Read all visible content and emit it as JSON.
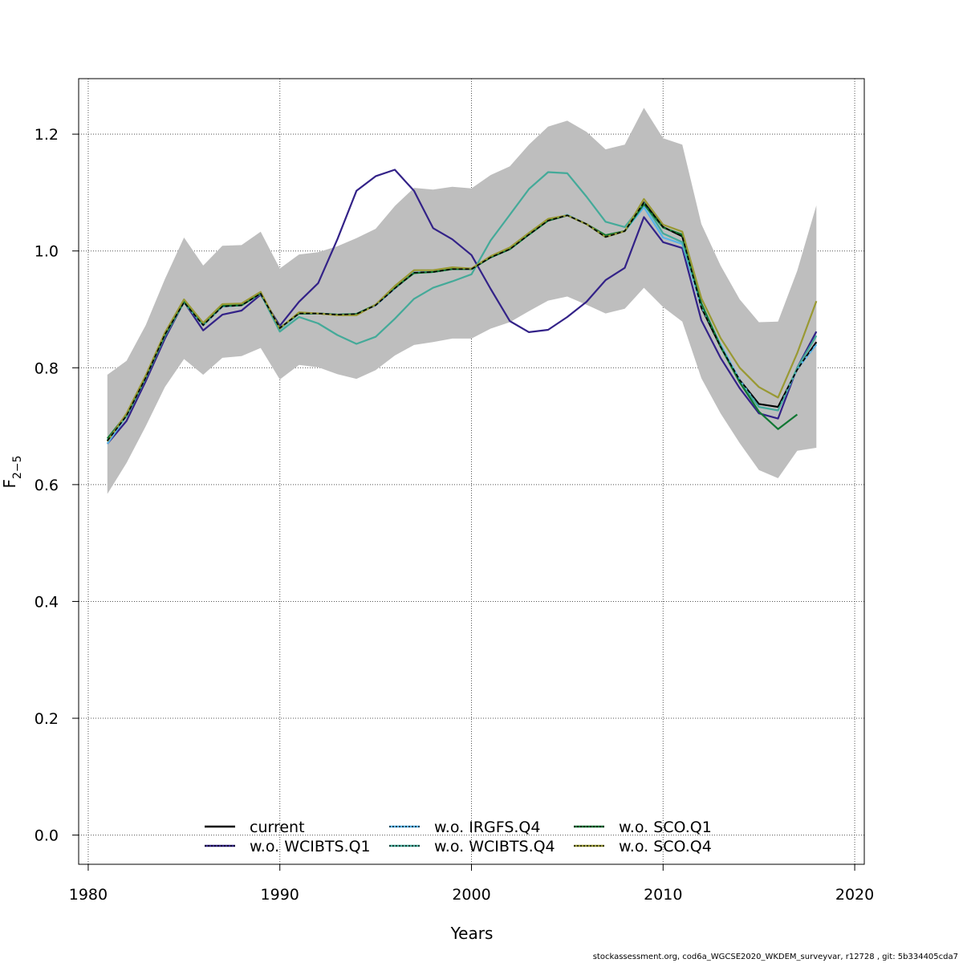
{
  "chart_data": {
    "type": "line",
    "xlabel": "Years",
    "ylabel_main": "F",
    "ylabel_sub": "2−5",
    "xlim": [
      1979.5,
      2020.5
    ],
    "ylim": [
      -0.05,
      1.295
    ],
    "xticks": [
      1980,
      1990,
      2000,
      2010,
      2020
    ],
    "yticks": [
      0.0,
      0.2,
      0.4,
      0.6,
      0.8,
      1.0,
      1.2
    ],
    "grid": true,
    "legend_position": "bottom-center",
    "x": [
      1981,
      1982,
      1983,
      1984,
      1985,
      1986,
      1987,
      1988,
      1989,
      1990,
      1991,
      1992,
      1993,
      1994,
      1995,
      1996,
      1997,
      1998,
      1999,
      2000,
      2001,
      2002,
      2003,
      2004,
      2005,
      2006,
      2007,
      2008,
      2009,
      2010,
      2011,
      2012,
      2013,
      2014,
      2015,
      2016,
      2017,
      2018
    ],
    "band": {
      "color": "#bebebe",
      "upper": [
        0.788,
        0.812,
        0.873,
        0.952,
        1.023,
        0.975,
        1.009,
        1.01,
        1.033,
        0.97,
        0.994,
        0.998,
        1.008,
        1.022,
        1.038,
        1.077,
        1.108,
        1.105,
        1.11,
        1.107,
        1.13,
        1.145,
        1.182,
        1.213,
        1.223,
        1.204,
        1.174,
        1.182,
        1.245,
        1.193,
        1.182,
        1.046,
        0.975,
        0.917,
        0.878,
        0.879,
        0.966,
        1.078
      ],
      "lower": [
        0.584,
        0.637,
        0.7,
        0.767,
        0.815,
        0.788,
        0.817,
        0.82,
        0.834,
        0.78,
        0.805,
        0.801,
        0.789,
        0.781,
        0.796,
        0.821,
        0.839,
        0.844,
        0.85,
        0.85,
        0.867,
        0.878,
        0.897,
        0.915,
        0.922,
        0.908,
        0.893,
        0.901,
        0.937,
        0.904,
        0.879,
        0.782,
        0.722,
        0.671,
        0.625,
        0.611,
        0.658,
        0.663
      ]
    },
    "series": [
      {
        "name": "current",
        "color": "#000000",
        "dash": "",
        "values": [
          0.675,
          0.718,
          0.783,
          0.857,
          0.912,
          0.873,
          0.905,
          0.907,
          0.927,
          0.868,
          0.893,
          0.893,
          0.891,
          0.892,
          0.907,
          0.936,
          0.963,
          0.964,
          0.969,
          0.969,
          0.989,
          1.003,
          1.028,
          1.052,
          1.061,
          1.046,
          1.024,
          1.034,
          1.083,
          1.041,
          1.025,
          0.903,
          0.836,
          0.779,
          0.738,
          0.733,
          0.797,
          0.844
        ]
      },
      {
        "name": "w.o. WCIBTS.Q1",
        "color": "#332288",
        "dash": "",
        "values": [
          0.67,
          0.709,
          0.777,
          0.85,
          0.913,
          0.864,
          0.891,
          0.898,
          0.925,
          0.872,
          0.913,
          0.945,
          1.02,
          1.103,
          1.128,
          1.139,
          1.103,
          1.039,
          1.02,
          0.993,
          0.935,
          0.88,
          0.861,
          0.865,
          0.887,
          0.913,
          0.95,
          0.971,
          1.058,
          1.015,
          1.005,
          0.881,
          0.817,
          0.765,
          0.722,
          0.713,
          0.8,
          0.862
        ]
      },
      {
        "name": "w.o. IRGFS.Q4",
        "color": "#56b4e9",
        "dash": "",
        "values": [
          0.67,
          0.718,
          0.783,
          0.857,
          0.912,
          0.873,
          0.905,
          0.907,
          0.927,
          0.866,
          0.893,
          0.893,
          0.891,
          0.892,
          0.907,
          0.936,
          0.963,
          0.964,
          0.969,
          0.969,
          0.989,
          1.003,
          1.028,
          1.052,
          1.062,
          1.046,
          1.024,
          1.034,
          1.075,
          1.023,
          1.012,
          0.905,
          0.84,
          0.779,
          0.733,
          0.727,
          0.798,
          0.84
        ]
      },
      {
        "name": "w.o. WCIBTS.Q4",
        "color": "#44aa99",
        "dash": "",
        "values": [
          0.676,
          0.717,
          0.783,
          0.855,
          0.912,
          0.873,
          0.906,
          0.907,
          0.927,
          0.862,
          0.887,
          0.876,
          0.856,
          0.841,
          0.853,
          0.884,
          0.918,
          0.937,
          0.948,
          0.96,
          1.018,
          1.062,
          1.106,
          1.135,
          1.133,
          1.093,
          1.05,
          1.041,
          1.082,
          1.03,
          1.015,
          0.91,
          0.838,
          0.775,
          0.733,
          0.727,
          0.8,
          0.855
        ]
      },
      {
        "name": "w.o. SCO.Q1",
        "color": "#117733",
        "dash": "",
        "values": [
          0.679,
          0.72,
          0.785,
          0.857,
          0.914,
          0.876,
          0.906,
          0.907,
          0.928,
          0.868,
          0.893,
          0.893,
          0.891,
          0.892,
          0.908,
          0.937,
          0.962,
          0.964,
          0.969,
          0.969,
          0.989,
          1.003,
          1.028,
          1.052,
          1.061,
          1.046,
          1.027,
          1.034,
          1.08,
          1.04,
          1.028,
          0.91,
          0.836,
          0.775,
          0.725,
          0.695,
          0.72,
          null
        ]
      },
      {
        "name": "w.o. SCO.Q4",
        "color": "#999933",
        "dash": "",
        "values": [
          0.674,
          0.722,
          0.787,
          0.86,
          0.917,
          0.877,
          0.909,
          0.91,
          0.93,
          0.867,
          0.895,
          0.893,
          0.89,
          0.89,
          0.908,
          0.94,
          0.967,
          0.967,
          0.972,
          0.97,
          0.991,
          1.006,
          1.031,
          1.055,
          1.061,
          1.046,
          1.024,
          1.034,
          1.089,
          1.045,
          1.033,
          0.919,
          0.851,
          0.8,
          0.767,
          0.749,
          0.825,
          0.914
        ]
      }
    ]
  },
  "legend": {
    "items": [
      {
        "label": "current",
        "color": "#000000",
        "dots": false,
        "dotcolor": ""
      },
      {
        "label": "w.o. WCIBTS.Q1",
        "color": "#332288",
        "dots": true,
        "dotcolor": "#000000"
      },
      {
        "label": "w.o. IRGFS.Q4",
        "color": "#56b4e9",
        "dots": true,
        "dotcolor": "#000000"
      },
      {
        "label": "w.o. WCIBTS.Q4",
        "color": "#44aa99",
        "dots": true,
        "dotcolor": "#000000"
      },
      {
        "label": "w.o. SCO.Q1",
        "color": "#117733",
        "dots": true,
        "dotcolor": "#000000"
      },
      {
        "label": "w.o. SCO.Q4",
        "color": "#999933",
        "dots": true,
        "dotcolor": "#000000"
      }
    ]
  },
  "footer": {
    "text": "stockassessment.org, cod6a_WGCSE2020_WKDEM_surveyvar, r12728 , git: 5b334405cda7"
  }
}
